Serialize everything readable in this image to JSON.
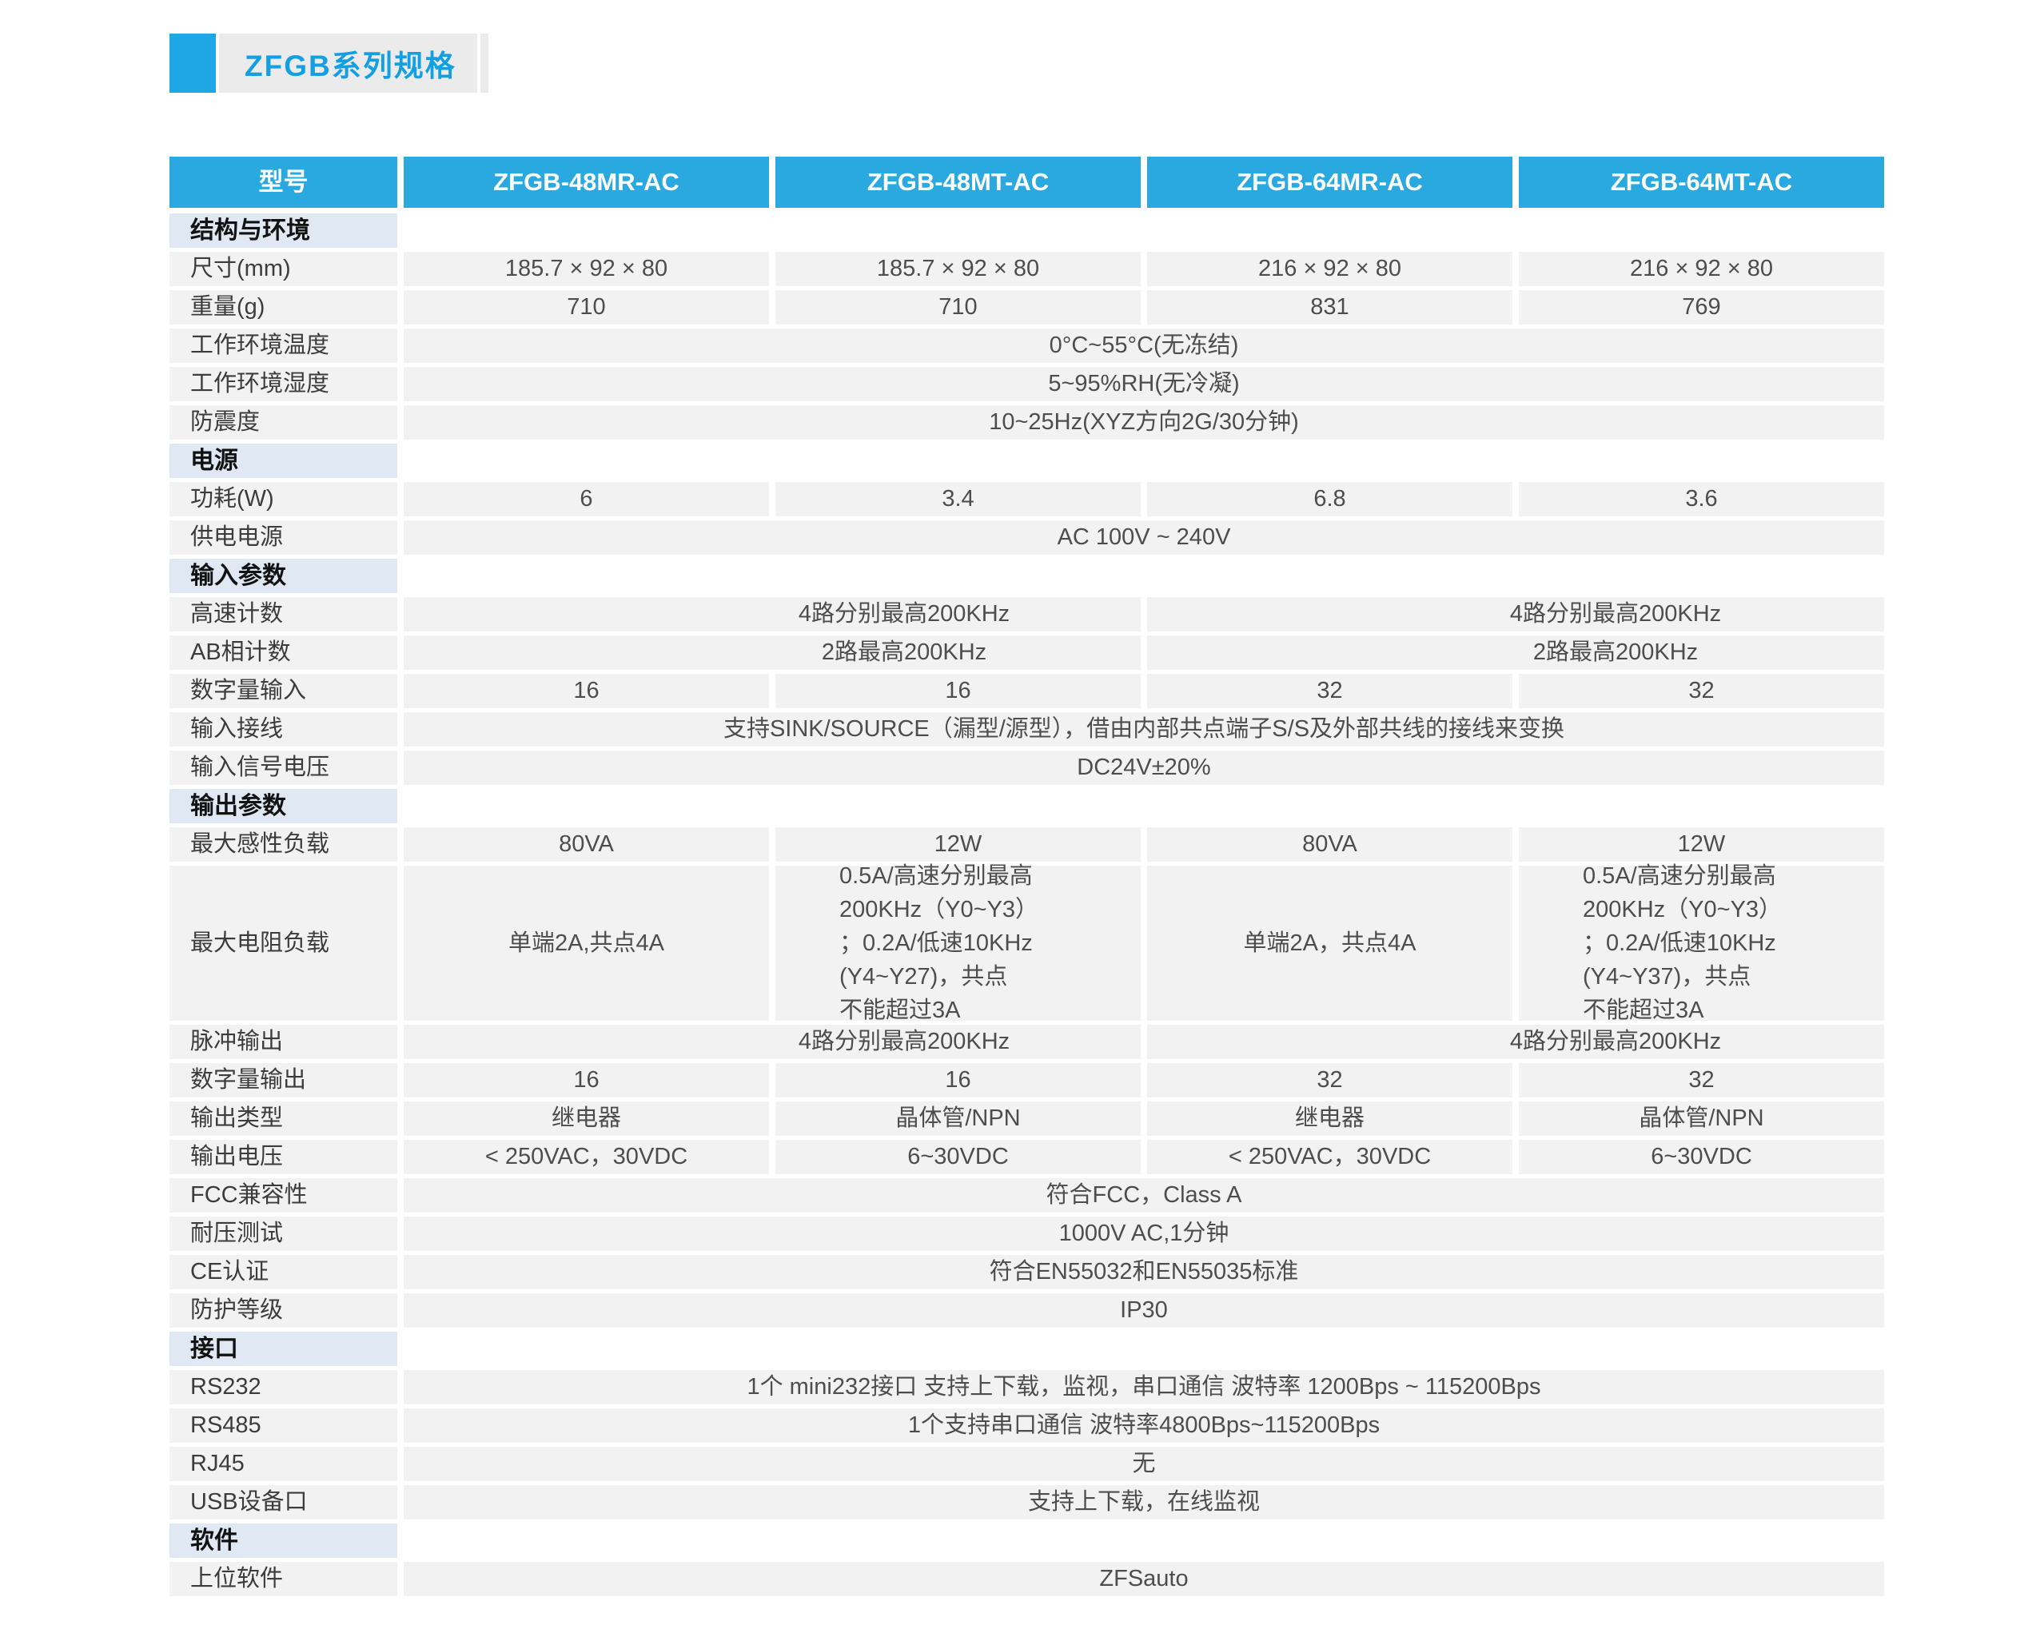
{
  "title": "ZFGB系列规格",
  "colors": {
    "header_blue": "#29a9e0",
    "accent_blue": "#1ea7e4",
    "title_text_blue": "#149fe2",
    "section_light_blue": "#dfe8f3",
    "cell_gray": "#f2f2f2",
    "text_dark": "#4d4d4d"
  },
  "header": {
    "label": "型号",
    "models": [
      "ZFGB-48MR-AC",
      "ZFGB-48MT-AC",
      "ZFGB-64MR-AC",
      "ZFGB-64MT-AC"
    ]
  },
  "t": {
    "sec_env": "结构与环境",
    "size": {
      "label": "尺寸(mm)",
      "c": [
        "185.7 × 92 × 80",
        "185.7 × 92 × 80",
        "216 × 92 × 80",
        "216 × 92 × 80"
      ]
    },
    "weight": {
      "label": "重量(g)",
      "c": [
        "710",
        "710",
        "831",
        "769"
      ]
    },
    "temp": {
      "label": "工作环境温度",
      "v": "0°C~55°C(无冻结)"
    },
    "humidity": {
      "label": "工作环境湿度",
      "v": "5~95%RH(无冷凝)"
    },
    "vibration": {
      "label": "防震度",
      "v": "10~25Hz(XYZ方向2G/30分钟)"
    },
    "sec_power": "电源",
    "power_w": {
      "label": "功耗(W)",
      "c": [
        "6",
        "3.4",
        "6.8",
        "3.6"
      ]
    },
    "supply": {
      "label": "供电电源",
      "v": "AC 100V ~ 240V"
    },
    "sec_input": "输入参数",
    "hsc": {
      "label": "高速计数",
      "left": "4路分别最高200KHz",
      "right": "4路分别最高200KHz"
    },
    "ab": {
      "label": "AB相计数",
      "left": "2路最高200KHz",
      "right": "2路最高200KHz"
    },
    "din": {
      "label": "数字量输入",
      "c": [
        "16",
        "16",
        "32",
        "32"
      ]
    },
    "wiring": {
      "label": "输入接线",
      "v": "支持SINK/SOURCE（漏型/源型），借由内部共点端子S/S及外部共线的接线来变换"
    },
    "vin": {
      "label": "输入信号电压",
      "v": "DC24V±20%"
    },
    "sec_output": "输出参数",
    "ind_load": {
      "label": "最大感性负载",
      "c": [
        "80VA",
        "12W",
        "80VA",
        "12W"
      ]
    },
    "res_load": {
      "label": "最大电阻负载",
      "c": [
        "单端2A,共点4A",
        "0.5A/高速分别最高\n200KHz（Y0~Y3）\n；0.2A/低速10KHz\n(Y4~Y27)，共点\n不能超过3A",
        "单端2A，共点4A",
        "0.5A/高速分别最高\n200KHz（Y0~Y3）\n；0.2A/低速10KHz\n(Y4~Y37)，共点\n不能超过3A"
      ]
    },
    "pulse": {
      "label": "脉冲输出",
      "left": "4路分别最高200KHz",
      "right": "4路分别最高200KHz"
    },
    "dout": {
      "label": "数字量输出",
      "c": [
        "16",
        "16",
        "32",
        "32"
      ]
    },
    "otype": {
      "label": "输出类型",
      "c": [
        "继电器",
        "晶体管/NPN",
        "继电器",
        "晶体管/NPN"
      ]
    },
    "ovolt": {
      "label": "输出电压",
      "c": [
        "< 250VAC，30VDC",
        "6~30VDC",
        "< 250VAC，30VDC",
        "6~30VDC"
      ]
    },
    "fcc": {
      "label": "FCC兼容性",
      "v": "符合FCC，Class A"
    },
    "withstand": {
      "label": "耐压测试",
      "v": "1000V AC,1分钟"
    },
    "ce": {
      "label": "CE认证",
      "v": "符合EN55032和EN55035标准"
    },
    "ip": {
      "label": "防护等级",
      "v": "IP30"
    },
    "sec_interface": "接口",
    "rs232": {
      "label": "RS232",
      "v": "1个 mini232接口 支持上下载，监视，串口通信 波特率 1200Bps ~ 115200Bps"
    },
    "rs485": {
      "label": "RS485",
      "v": "1个支持串口通信 波特率4800Bps~115200Bps"
    },
    "rj45": {
      "label": "RJ45",
      "v": "无"
    },
    "usb": {
      "label": "USB设备口",
      "v": "支持上下载，在线监视"
    },
    "sec_software": "软件",
    "software": {
      "label": "上位软件",
      "v": "ZFSauto"
    }
  }
}
